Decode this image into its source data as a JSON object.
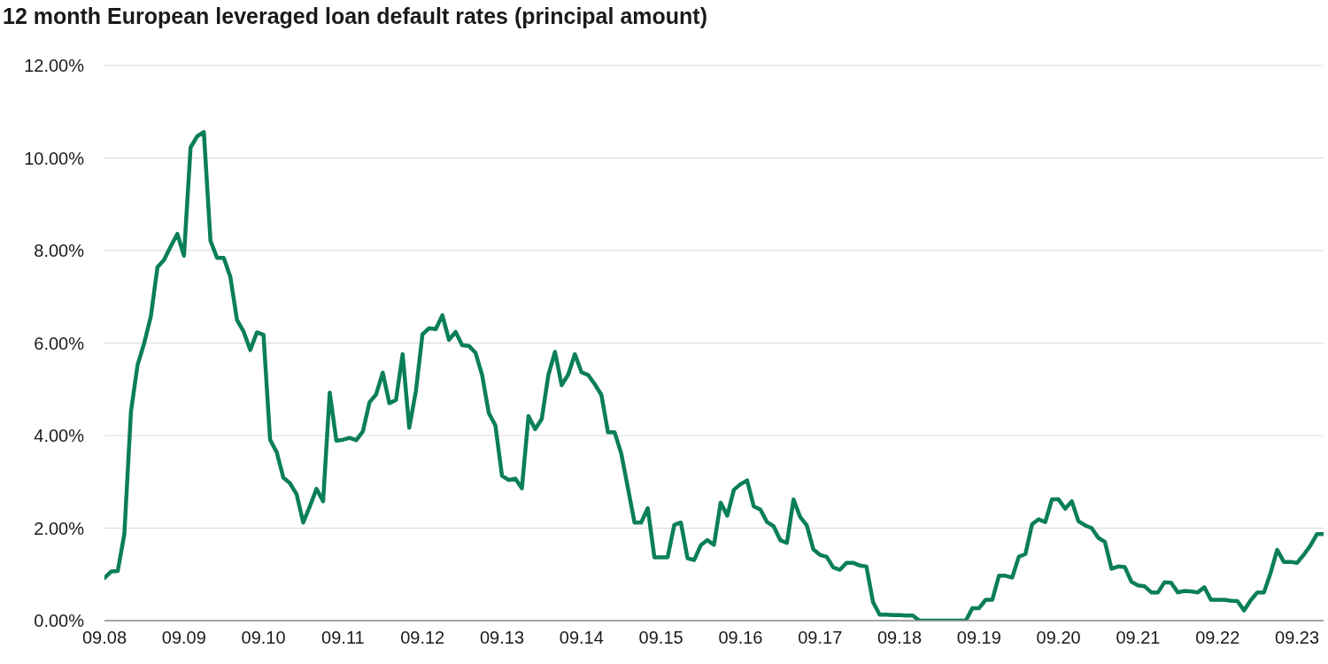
{
  "chart_data": {
    "type": "line",
    "title": "12 month European leveraged loan default rates (principal amount)",
    "x": [
      "2008-09",
      "2008-10",
      "2008-11",
      "2008-12",
      "2009-01",
      "2009-02",
      "2009-03",
      "2009-04",
      "2009-05",
      "2009-06",
      "2009-07",
      "2009-08",
      "2009-09",
      "2009-10",
      "2009-11",
      "2009-12",
      "2010-01",
      "2010-02",
      "2010-03",
      "2010-04",
      "2010-05",
      "2010-06",
      "2010-07",
      "2010-08",
      "2010-09",
      "2010-10",
      "2010-11",
      "2010-12",
      "2011-01",
      "2011-02",
      "2011-03",
      "2011-04",
      "2011-05",
      "2011-06",
      "2011-07",
      "2011-08",
      "2011-09",
      "2011-10",
      "2011-11",
      "2011-12",
      "2012-01",
      "2012-02",
      "2012-03",
      "2012-04",
      "2012-05",
      "2012-06",
      "2012-07",
      "2012-08",
      "2012-09",
      "2012-10",
      "2012-11",
      "2012-12",
      "2013-01",
      "2013-02",
      "2013-03",
      "2013-04",
      "2013-05",
      "2013-06",
      "2013-07",
      "2013-08",
      "2013-09",
      "2013-10",
      "2013-11",
      "2013-12",
      "2014-01",
      "2014-02",
      "2014-03",
      "2014-04",
      "2014-05",
      "2014-06",
      "2014-07",
      "2014-08",
      "2014-09",
      "2014-10",
      "2014-11",
      "2014-12",
      "2015-01",
      "2015-02",
      "2015-03",
      "2015-04",
      "2015-05",
      "2015-06",
      "2015-07",
      "2015-08",
      "2015-09",
      "2015-10",
      "2015-11",
      "2015-12",
      "2016-01",
      "2016-02",
      "2016-03",
      "2016-04",
      "2016-05",
      "2016-06",
      "2016-07",
      "2016-08",
      "2016-09",
      "2016-10",
      "2016-11",
      "2016-12",
      "2017-01",
      "2017-02",
      "2017-03",
      "2017-04",
      "2017-05",
      "2017-06",
      "2017-07",
      "2017-08",
      "2017-09",
      "2017-10",
      "2017-11",
      "2017-12",
      "2018-01",
      "2018-02",
      "2018-03",
      "2018-04",
      "2018-05",
      "2018-06",
      "2018-07",
      "2018-08",
      "2018-09",
      "2018-10",
      "2018-11",
      "2018-12",
      "2019-01",
      "2019-02",
      "2019-03",
      "2019-04",
      "2019-05",
      "2019-06",
      "2019-07",
      "2019-08",
      "2019-09",
      "2019-10",
      "2019-11",
      "2019-12",
      "2020-01",
      "2020-02",
      "2020-03",
      "2020-04",
      "2020-05",
      "2020-06",
      "2020-07",
      "2020-08",
      "2020-09",
      "2020-10",
      "2020-11",
      "2020-12",
      "2021-01",
      "2021-02",
      "2021-03",
      "2021-04",
      "2021-05",
      "2021-06",
      "2021-07",
      "2021-08",
      "2021-09",
      "2021-10",
      "2021-11",
      "2021-12",
      "2022-01",
      "2022-02",
      "2022-03",
      "2022-04",
      "2022-05",
      "2022-06",
      "2022-07",
      "2022-08",
      "2022-09",
      "2022-10",
      "2022-11",
      "2022-12",
      "2023-01",
      "2023-02",
      "2023-03",
      "2023-04",
      "2023-05",
      "2023-06",
      "2023-07",
      "2023-08",
      "2023-09",
      "2023-10",
      "2023-11",
      "2023-12",
      "2024-01"
    ],
    "series": [
      {
        "color": "#0b7f56",
        "values": [
          0.92,
          1.06,
          1.07,
          1.87,
          4.52,
          5.53,
          6.0,
          6.58,
          7.64,
          7.8,
          8.09,
          8.36,
          7.89,
          10.23,
          10.47,
          10.56,
          8.21,
          7.84,
          7.84,
          7.43,
          6.5,
          6.25,
          5.85,
          6.23,
          6.18,
          3.91,
          3.64,
          3.09,
          2.97,
          2.73,
          2.12,
          2.47,
          2.85,
          2.58,
          4.93,
          3.89,
          3.91,
          3.95,
          3.9,
          4.09,
          4.72,
          4.89,
          5.36,
          4.7,
          4.77,
          5.76,
          4.17,
          4.96,
          6.19,
          6.32,
          6.3,
          6.6,
          6.07,
          6.24,
          5.95,
          5.94,
          5.79,
          5.31,
          4.49,
          4.22,
          3.13,
          3.04,
          3.07,
          2.86,
          4.42,
          4.14,
          4.36,
          5.31,
          5.81,
          5.09,
          5.32,
          5.76,
          5.37,
          5.31,
          5.11,
          4.88,
          4.07,
          4.07,
          3.61,
          2.87,
          2.12,
          2.12,
          2.43,
          1.37,
          1.37,
          1.37,
          2.07,
          2.12,
          1.35,
          1.31,
          1.63,
          1.74,
          1.64,
          2.55,
          2.27,
          2.83,
          2.95,
          3.03,
          2.47,
          2.4,
          2.13,
          2.04,
          1.74,
          1.68,
          2.62,
          2.24,
          2.06,
          1.54,
          1.42,
          1.38,
          1.15,
          1.1,
          1.25,
          1.25,
          1.19,
          1.17,
          0.4,
          0.13,
          0.13,
          0.12,
          0.12,
          0.11,
          0.11,
          0,
          0,
          0,
          0,
          0,
          0,
          0,
          0,
          0.27,
          0.27,
          0.45,
          0.45,
          0.97,
          0.97,
          0.93,
          1.38,
          1.44,
          2.08,
          2.19,
          2.13,
          2.62,
          2.62,
          2.42,
          2.58,
          2.15,
          2.06,
          2.0,
          1.79,
          1.7,
          1.12,
          1.17,
          1.16,
          0.84,
          0.76,
          0.74,
          0.61,
          0.61,
          0.83,
          0.82,
          0.61,
          0.64,
          0.63,
          0.61,
          0.72,
          0.45,
          0.45,
          0.45,
          0.43,
          0.42,
          0.22,
          0.44,
          0.61,
          0.61,
          1.03,
          1.53,
          1.27,
          1.27,
          1.25,
          1.42,
          1.62,
          1.87,
          1.87
        ]
      }
    ],
    "xlim": [
      "2008-09",
      "2024-01"
    ],
    "xticks": [
      {
        "value": "2008-09",
        "label": "09.08"
      },
      {
        "value": "2009-09",
        "label": "09.09"
      },
      {
        "value": "2010-09",
        "label": "09.10"
      },
      {
        "value": "2011-09",
        "label": "09.11"
      },
      {
        "value": "2012-09",
        "label": "09.12"
      },
      {
        "value": "2013-09",
        "label": "09.13"
      },
      {
        "value": "2014-09",
        "label": "09.14"
      },
      {
        "value": "2015-09",
        "label": "09.15"
      },
      {
        "value": "2016-09",
        "label": "09.16"
      },
      {
        "value": "2017-09",
        "label": "09.17"
      },
      {
        "value": "2018-09",
        "label": "09.18"
      },
      {
        "value": "2019-09",
        "label": "09.19"
      },
      {
        "value": "2020-09",
        "label": "09.20"
      },
      {
        "value": "2021-09",
        "label": "09.21"
      },
      {
        "value": "2022-09",
        "label": "09.22"
      },
      {
        "value": "2023-09",
        "label": "09.23"
      }
    ],
    "ylim": [
      0,
      12
    ],
    "yticks": [
      {
        "value": 0,
        "label": "0.00%"
      },
      {
        "value": 2,
        "label": "2.00%"
      },
      {
        "value": 4,
        "label": "4.00%"
      },
      {
        "value": 6,
        "label": "6.00%"
      },
      {
        "value": 8,
        "label": "8.00%"
      },
      {
        "value": 10,
        "label": "10.00%"
      },
      {
        "value": 12,
        "label": "12.00%"
      }
    ],
    "grid": "y"
  }
}
